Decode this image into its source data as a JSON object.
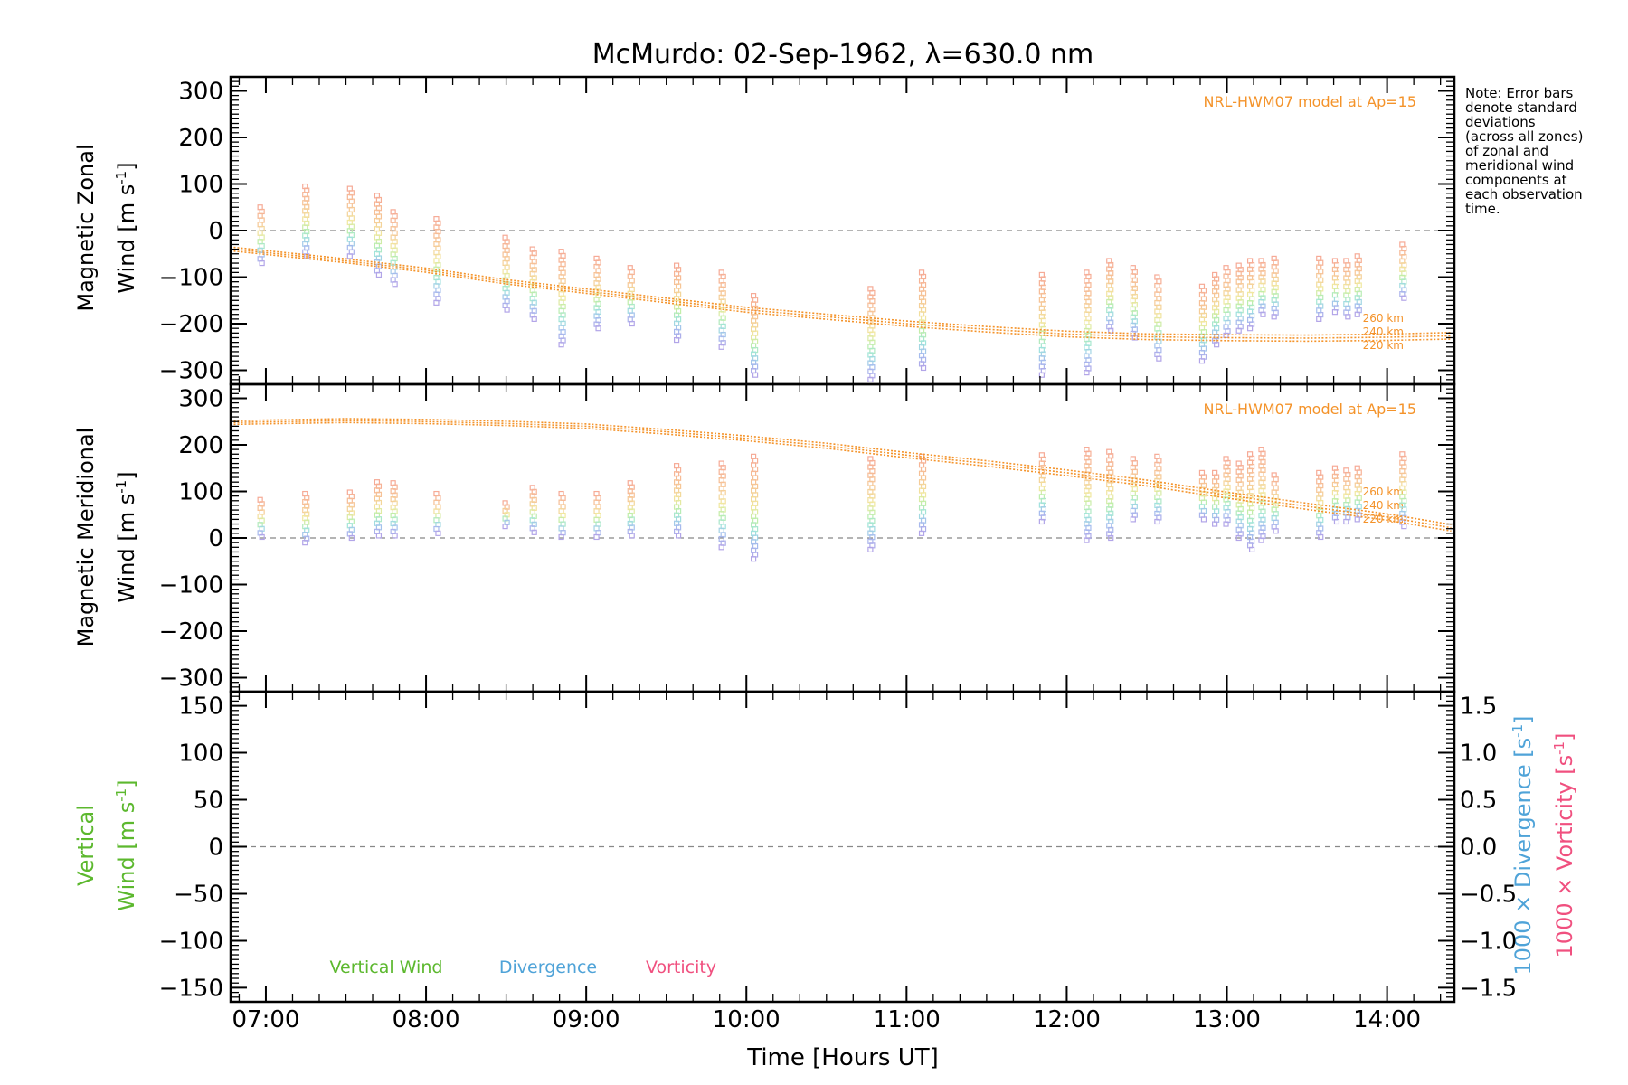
{
  "title": "McMurdo: 02-Sep-1962, λ=630.0 nm",
  "note_lines": [
    "Note: Error bars",
    "denote standard",
    "deviations",
    "(across all zones)",
    "of zonal and",
    "meridional wind",
    "components at",
    "each observation",
    "time."
  ],
  "xlabel": "Time [Hours UT]",
  "colors": {
    "model": "#f4932a",
    "vertical": "#5cb82e",
    "divergence": "#4fa3d8",
    "vorticity": "#f0507f",
    "zero_line": "#888888"
  },
  "panels": {
    "zonal": {
      "ylabel_line1": "Magnetic Zonal",
      "ylabel_line2_text": "Wind [m s",
      "ylabel_unit_exp": "-1",
      "ylabel_close": "]",
      "yticks": [
        "300",
        "200",
        "100",
        "0",
        "−100",
        "−200",
        "−300"
      ],
      "model_label": "NRL-HWM07 model at Ap=15",
      "alt_labels": [
        "260 km",
        "240 km",
        "220 km"
      ]
    },
    "meridional": {
      "ylabel_line1": "Magnetic Meridional",
      "ylabel_line2_text": "Wind [m s",
      "ylabel_unit_exp": "-1",
      "ylabel_close": "]",
      "yticks": [
        "300",
        "200",
        "100",
        "0",
        "−100",
        "−200",
        "−300"
      ],
      "model_label": "NRL-HWM07 model at Ap=15",
      "alt_labels": [
        "260 km",
        "240 km",
        "220 km"
      ]
    },
    "vertical": {
      "ylabel_line1": "Vertical",
      "ylabel_line2_text": "Wind [m s",
      "ylabel_unit_exp": "-1",
      "ylabel_close": "]",
      "yticks": [
        "150",
        "100",
        "50",
        "0",
        "−50",
        "−100",
        "−150"
      ],
      "right_yticks": [
        "1.5",
        "1.0",
        "0.5",
        "0.0",
        "−0.5",
        "−1.0",
        "−1.5"
      ],
      "right_label_divergence": "1000 × Divergence [s",
      "right_label_vorticity": "1000 × Vorticity [s",
      "right_label_exp": "-1",
      "right_label_close": "]",
      "legend": [
        "Vertical Wind",
        "Divergence",
        "Vorticity"
      ]
    }
  },
  "xticks": [
    "07:00",
    "08:00",
    "09:00",
    "10:00",
    "11:00",
    "12:00",
    "13:00",
    "14:00"
  ],
  "chart_data": [
    {
      "type": "scatter",
      "title": "McMurdo: 02-Sep-1962, λ=630.0 nm",
      "xlabel": "Time [Hours UT]",
      "ylabel": "Magnetic Zonal Wind [m s-1]",
      "xlim": [
        6.78,
        14.42
      ],
      "ylim": [
        -330,
        330
      ],
      "grid": false,
      "series": [
        {
          "name": "NRL-HWM07 model at Ap=15",
          "style": "dotted-line",
          "x": [
            6.8,
            7.5,
            8.0,
            8.5,
            9.0,
            9.5,
            10.0,
            10.5,
            11.0,
            11.5,
            12.0,
            12.5,
            13.0,
            13.5,
            14.0,
            14.4
          ],
          "y": [
            -40,
            -65,
            -85,
            -110,
            -130,
            -150,
            -170,
            -185,
            -200,
            -212,
            -222,
            -228,
            -230,
            -231,
            -229,
            -226
          ]
        },
        {
          "name": "observations",
          "style": "vertical-point-columns",
          "columns": [
            {
              "x": 6.97,
              "top": 50,
              "bottom": -70
            },
            {
              "x": 7.25,
              "top": 95,
              "bottom": -55
            },
            {
              "x": 7.53,
              "top": 90,
              "bottom": -55
            },
            {
              "x": 7.7,
              "top": 75,
              "bottom": -95
            },
            {
              "x": 7.8,
              "top": 40,
              "bottom": -115
            },
            {
              "x": 8.07,
              "top": 25,
              "bottom": -155
            },
            {
              "x": 8.5,
              "top": -15,
              "bottom": -170
            },
            {
              "x": 8.67,
              "top": -40,
              "bottom": -190
            },
            {
              "x": 8.85,
              "top": -45,
              "bottom": -245
            },
            {
              "x": 9.07,
              "top": -60,
              "bottom": -210
            },
            {
              "x": 9.28,
              "top": -80,
              "bottom": -200
            },
            {
              "x": 9.57,
              "top": -75,
              "bottom": -235
            },
            {
              "x": 9.85,
              "top": -90,
              "bottom": -250
            },
            {
              "x": 10.05,
              "top": -140,
              "bottom": -310
            },
            {
              "x": 10.78,
              "top": -125,
              "bottom": -320
            },
            {
              "x": 11.1,
              "top": -90,
              "bottom": -295
            },
            {
              "x": 11.85,
              "top": -95,
              "bottom": -310
            },
            {
              "x": 12.13,
              "top": -90,
              "bottom": -305
            },
            {
              "x": 12.27,
              "top": -65,
              "bottom": -215
            },
            {
              "x": 12.42,
              "top": -80,
              "bottom": -230
            },
            {
              "x": 12.57,
              "top": -100,
              "bottom": -275
            },
            {
              "x": 12.85,
              "top": -120,
              "bottom": -280
            },
            {
              "x": 12.93,
              "top": -95,
              "bottom": -245
            },
            {
              "x": 13.0,
              "top": -80,
              "bottom": -225
            },
            {
              "x": 13.08,
              "top": -75,
              "bottom": -215
            },
            {
              "x": 13.15,
              "top": -65,
              "bottom": -210
            },
            {
              "x": 13.22,
              "top": -65,
              "bottom": -180
            },
            {
              "x": 13.3,
              "top": -60,
              "bottom": -185
            },
            {
              "x": 13.58,
              "top": -60,
              "bottom": -190
            },
            {
              "x": 13.68,
              "top": -65,
              "bottom": -175
            },
            {
              "x": 13.75,
              "top": -65,
              "bottom": -185
            },
            {
              "x": 13.82,
              "top": -55,
              "bottom": -180
            },
            {
              "x": 14.1,
              "top": -30,
              "bottom": -145
            }
          ]
        }
      ],
      "annotations": [
        "260 km",
        "240 km",
        "220 km"
      ]
    },
    {
      "type": "scatter",
      "ylabel": "Magnetic Meridional Wind [m s-1]",
      "xlim": [
        6.78,
        14.42
      ],
      "ylim": [
        -330,
        330
      ],
      "grid": false,
      "series": [
        {
          "name": "NRL-HWM07 model at Ap=15",
          "style": "dotted-line",
          "x": [
            6.8,
            7.5,
            8.0,
            8.5,
            9.0,
            9.5,
            10.0,
            10.5,
            11.0,
            11.5,
            12.0,
            12.5,
            13.0,
            13.5,
            14.0,
            14.4
          ],
          "y": [
            248,
            252,
            250,
            246,
            240,
            228,
            214,
            198,
            178,
            160,
            140,
            118,
            92,
            68,
            45,
            22
          ]
        },
        {
          "name": "observations",
          "style": "vertical-point-columns",
          "columns": [
            {
              "x": 6.97,
              "top": 82,
              "bottom": 2
            },
            {
              "x": 7.25,
              "top": 95,
              "bottom": -10
            },
            {
              "x": 7.53,
              "top": 98,
              "bottom": 0
            },
            {
              "x": 7.7,
              "top": 120,
              "bottom": 5
            },
            {
              "x": 7.8,
              "top": 118,
              "bottom": 5
            },
            {
              "x": 8.07,
              "top": 95,
              "bottom": 10
            },
            {
              "x": 8.5,
              "top": 75,
              "bottom": 25
            },
            {
              "x": 8.67,
              "top": 108,
              "bottom": 12
            },
            {
              "x": 8.85,
              "top": 95,
              "bottom": 2
            },
            {
              "x": 9.07,
              "top": 95,
              "bottom": 2
            },
            {
              "x": 9.28,
              "top": 118,
              "bottom": 5
            },
            {
              "x": 9.57,
              "top": 155,
              "bottom": 5
            },
            {
              "x": 9.85,
              "top": 160,
              "bottom": -20
            },
            {
              "x": 10.05,
              "top": 175,
              "bottom": -45
            },
            {
              "x": 10.78,
              "top": 170,
              "bottom": -25
            },
            {
              "x": 11.1,
              "top": 175,
              "bottom": 10
            },
            {
              "x": 11.85,
              "top": 178,
              "bottom": 35
            },
            {
              "x": 12.13,
              "top": 190,
              "bottom": -5
            },
            {
              "x": 12.27,
              "top": 185,
              "bottom": 0
            },
            {
              "x": 12.42,
              "top": 170,
              "bottom": 40
            },
            {
              "x": 12.57,
              "top": 175,
              "bottom": 35
            },
            {
              "x": 12.85,
              "top": 140,
              "bottom": 40
            },
            {
              "x": 12.93,
              "top": 140,
              "bottom": 30
            },
            {
              "x": 13.0,
              "top": 170,
              "bottom": 30
            },
            {
              "x": 13.08,
              "top": 160,
              "bottom": 0
            },
            {
              "x": 13.15,
              "top": 180,
              "bottom": -25
            },
            {
              "x": 13.22,
              "top": 190,
              "bottom": -5
            },
            {
              "x": 13.3,
              "top": 135,
              "bottom": 15
            },
            {
              "x": 13.58,
              "top": 140,
              "bottom": 2
            },
            {
              "x": 13.68,
              "top": 150,
              "bottom": 35
            },
            {
              "x": 13.75,
              "top": 145,
              "bottom": 35
            },
            {
              "x": 13.82,
              "top": 150,
              "bottom": 40
            },
            {
              "x": 14.1,
              "top": 180,
              "bottom": 25
            }
          ]
        }
      ],
      "annotations": [
        "260 km",
        "240 km",
        "220 km"
      ]
    },
    {
      "type": "line",
      "ylabel": "Vertical Wind [m s-1]",
      "y2label": "1000 × Divergence [s-1] / 1000 × Vorticity [s-1]",
      "xlim": [
        6.78,
        14.42
      ],
      "ylim": [
        -165,
        165
      ],
      "y2lim": [
        -1.65,
        1.65
      ],
      "grid": false,
      "series": [
        {
          "name": "Vertical Wind",
          "x": [],
          "y": []
        },
        {
          "name": "Divergence",
          "x": [],
          "y": []
        },
        {
          "name": "Vorticity",
          "x": [],
          "y": []
        }
      ]
    }
  ]
}
